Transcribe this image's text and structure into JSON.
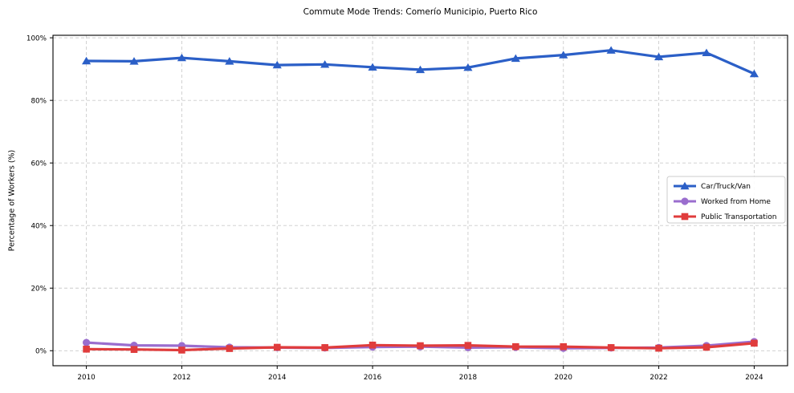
{
  "chart_data": {
    "type": "line",
    "title": "Commute Mode Trends: Comerío Municipio, Puerto Rico",
    "xlabel": "",
    "ylabel": "Percentage of Workers (%)",
    "x": [
      2010,
      2011,
      2012,
      2013,
      2014,
      2015,
      2016,
      2017,
      2018,
      2019,
      2020,
      2021,
      2022,
      2023,
      2024
    ],
    "series": [
      {
        "name": "Car/Truck/Van",
        "marker": "triangle",
        "color": "#2b5fc7",
        "values": [
          92.6,
          92.5,
          93.6,
          92.5,
          91.3,
          91.5,
          90.6,
          89.8,
          90.5,
          93.4,
          94.5,
          96.0,
          93.9,
          95.2,
          88.5
        ]
      },
      {
        "name": "Worked from Home",
        "marker": "circle",
        "color": "#9a6dce",
        "values": [
          2.6,
          1.7,
          1.6,
          1.1,
          1.0,
          0.9,
          1.2,
          1.3,
          1.0,
          1.1,
          0.8,
          0.9,
          1.0,
          1.6,
          2.9
        ]
      },
      {
        "name": "Public Transportation",
        "marker": "square",
        "color": "#e03c3c",
        "values": [
          0.5,
          0.4,
          0.2,
          0.7,
          1.1,
          1.0,
          1.8,
          1.6,
          1.7,
          1.3,
          1.3,
          1.0,
          0.8,
          1.1,
          2.4
        ]
      }
    ],
    "xticks": [
      2010,
      2012,
      2014,
      2016,
      2018,
      2020,
      2022,
      2024
    ],
    "yticks": [
      0,
      20,
      40,
      60,
      80,
      100
    ],
    "ytick_labels": [
      "0%",
      "20%",
      "40%",
      "60%",
      "80%",
      "100%"
    ],
    "xlim": [
      2009.3,
      2024.7
    ],
    "ylim": [
      -4.8,
      100.8
    ],
    "grid": true,
    "grid_style": "dashed",
    "legend_position": "center-right"
  },
  "colors": {
    "background": "#ffffff",
    "grid": "#cccccc",
    "axis": "#000000",
    "legend_border": "#cccccc",
    "text": "#000000"
  }
}
